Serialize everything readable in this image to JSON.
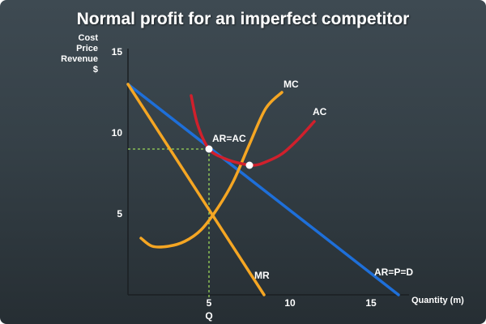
{
  "chart_data": {
    "type": "line",
    "title": "Normal profit for an imperfect competitor",
    "ylabel": [
      "Cost",
      "Price",
      "Revenue",
      "$"
    ],
    "xlabel": "Quantity (m)",
    "x_ticks": [
      5,
      10,
      15
    ],
    "y_ticks": [
      5,
      10,
      15
    ],
    "xlim": [
      0,
      17
    ],
    "ylim": [
      0,
      16
    ],
    "grid": false,
    "q_label": "Q",
    "series": [
      {
        "name": "AR=P=D",
        "color": "#1e6fd9",
        "x": [
          0,
          16.7
        ],
        "y": [
          13,
          0
        ]
      },
      {
        "name": "MR",
        "color": "#f5a623",
        "x": [
          0,
          8.4
        ],
        "y": [
          13,
          0
        ]
      },
      {
        "name": "MC",
        "color": "#f5a623",
        "x": [
          0.8,
          1.5,
          2.5,
          3.5,
          4.5,
          5.5,
          6.5,
          7.5,
          8.5,
          9.5
        ],
        "y": [
          3.5,
          3.0,
          3.0,
          3.3,
          4.0,
          5.3,
          7.0,
          9.3,
          11.5,
          12.5
        ]
      },
      {
        "name": "AC",
        "color": "#d0202c",
        "x": [
          3.9,
          4.3,
          5.0,
          6.0,
          7.0,
          7.8,
          8.5,
          9.5,
          10.5,
          11.5
        ],
        "y": [
          12.3,
          10.5,
          9.0,
          8.4,
          8.1,
          8.0,
          8.2,
          8.7,
          9.6,
          10.7
        ]
      }
    ],
    "points": [
      {
        "label": "AR=AC",
        "x": 5,
        "y": 9
      },
      {
        "label": "",
        "x": 7.5,
        "y": 8
      }
    ],
    "guides": {
      "x": 5,
      "y": 9,
      "color": "#9bd65a"
    },
    "label_anchors": {
      "AR=P=D": {
        "x": 15.2,
        "y": 1.2
      },
      "MR": {
        "x": 7.8,
        "y": 1.0
      },
      "MC": {
        "x": 9.6,
        "y": 12.8
      },
      "AC": {
        "x": 11.4,
        "y": 11.1
      }
    }
  }
}
